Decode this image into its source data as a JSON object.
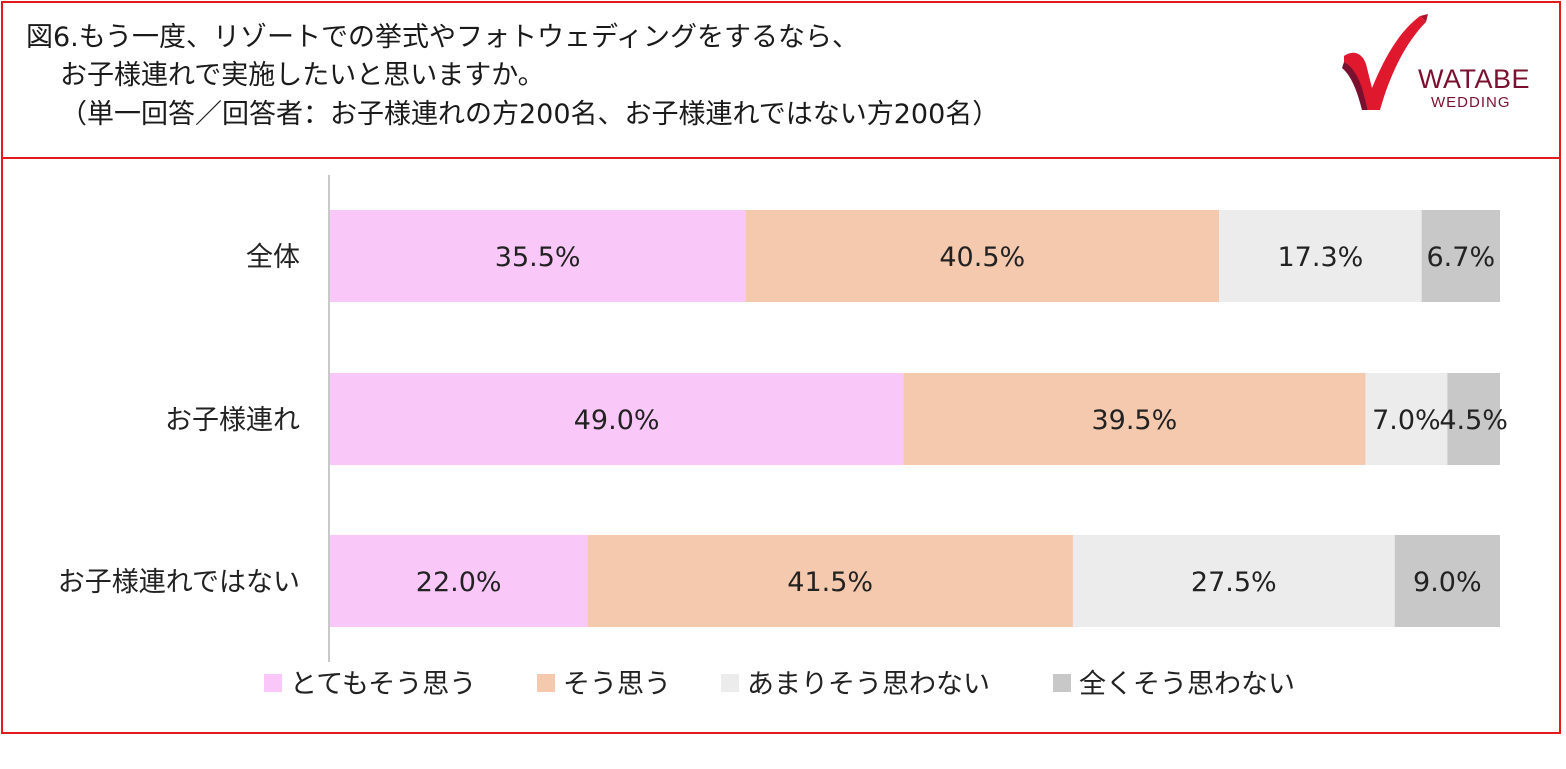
{
  "title": {
    "line1": "図6.もう一度、リゾートでの挙式やフォトウェディングをするなら、",
    "line2": "お子様連れで実施したいと思いますか。",
    "line3": "（単一回答／回答者：お子様連れの方200名、お子様連れではない方200名）"
  },
  "logo": {
    "name": "WATABE",
    "sub": "WEDDING"
  },
  "chart_data": {
    "type": "bar",
    "orientation": "horizontal",
    "stacked": true,
    "percent_stacked": true,
    "categories": [
      "全体",
      "お子様連れ",
      "お子様連れではない"
    ],
    "series": [
      {
        "name": "とてもそう思う",
        "values": [
          35.5,
          49.0,
          22.0
        ],
        "labels": [
          "35.5%",
          "49.0%",
          "22.0%"
        ],
        "color": "#f9c8f9"
      },
      {
        "name": "そう思う",
        "values": [
          40.5,
          39.5,
          41.5
        ],
        "labels": [
          "40.5%",
          "39.5%",
          "41.5%"
        ],
        "color": "#f5c9ad"
      },
      {
        "name": "あまりそう思わない",
        "values": [
          17.3,
          7.0,
          27.5
        ],
        "labels": [
          "17.3%",
          "7.0%",
          "27.5%"
        ],
        "color": "#ececec"
      },
      {
        "name": "全くそう思わない",
        "values": [
          6.7,
          4.5,
          9.0
        ],
        "labels": [
          "6.7%",
          "4.5%",
          "9.0%"
        ],
        "color": "#c8c8c8"
      }
    ],
    "xlim": [
      0,
      100
    ],
    "grid": false,
    "legend_position": "bottom"
  },
  "colors": {
    "frame": "#e31b1b",
    "logo_primary": "#e0182d",
    "logo_dark": "#7a1030"
  }
}
